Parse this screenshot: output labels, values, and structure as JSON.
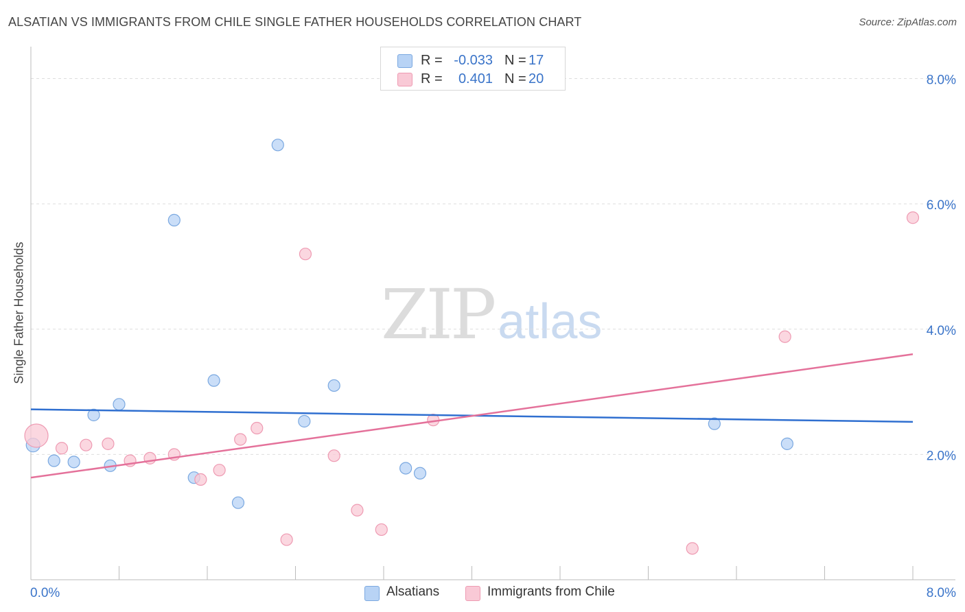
{
  "title": "ALSATIAN VS IMMIGRANTS FROM CHILE SINGLE FATHER HOUSEHOLDS CORRELATION CHART",
  "source": "Source: ZipAtlas.com",
  "watermark": {
    "zip": "ZIP",
    "atlas": "atlas"
  },
  "colors": {
    "blue_fill": "#b8d3f5",
    "blue_stroke": "#7aa8e0",
    "blue_line": "#2f6fd0",
    "pink_fill": "#f9c9d6",
    "pink_stroke": "#ee9ab2",
    "pink_line": "#e4719a",
    "tick_label": "#3a74c9"
  },
  "legend": {
    "rows": [
      {
        "r_label": "R =",
        "r_value": "-0.033",
        "n_label": "N =",
        "n_value": "17"
      },
      {
        "r_label": "R =",
        "r_value": "0.401",
        "n_label": "N =",
        "n_value": "20"
      }
    ]
  },
  "bottom_legend": {
    "series1": "Alsatians",
    "series2": "Immigrants from Chile"
  },
  "chart_data": {
    "type": "scatter",
    "title": "ALSATIAN VS IMMIGRANTS FROM CHILE SINGLE FATHER HOUSEHOLDS CORRELATION CHART",
    "xlabel": "",
    "ylabel": "Single Father Households",
    "xlim": [
      0,
      8
    ],
    "ylim": [
      0,
      8.4
    ],
    "x_tick_labels": [
      "0.0%",
      "8.0%"
    ],
    "y_ticks": [
      2,
      4,
      6,
      8
    ],
    "y_tick_labels": [
      "2.0%",
      "4.0%",
      "6.0%",
      "8.0%"
    ],
    "grid": "horizontal dashed",
    "legend_position": "top-center",
    "series": [
      {
        "name": "Alsatians",
        "points": [
          [
            0.02,
            2.15
          ],
          [
            0.21,
            1.9
          ],
          [
            0.39,
            1.88
          ],
          [
            0.57,
            2.63
          ],
          [
            0.72,
            1.82
          ],
          [
            0.8,
            2.8
          ],
          [
            1.3,
            5.74
          ],
          [
            1.48,
            1.63
          ],
          [
            1.66,
            3.18
          ],
          [
            1.88,
            1.23
          ],
          [
            2.24,
            6.94
          ],
          [
            2.48,
            2.53
          ],
          [
            2.75,
            3.1
          ],
          [
            3.4,
            1.78
          ],
          [
            3.53,
            1.7
          ],
          [
            6.2,
            2.49
          ],
          [
            6.86,
            2.17
          ]
        ],
        "trend": {
          "start": [
            0,
            2.72
          ],
          "end": [
            8,
            2.52
          ]
        }
      },
      {
        "name": "Immigrants from Chile",
        "points": [
          [
            0.05,
            2.3
          ],
          [
            0.28,
            2.1
          ],
          [
            0.5,
            2.15
          ],
          [
            0.7,
            2.17
          ],
          [
            0.9,
            1.9
          ],
          [
            1.08,
            1.94
          ],
          [
            1.3,
            2.0
          ],
          [
            1.54,
            1.6
          ],
          [
            1.71,
            1.75
          ],
          [
            1.9,
            2.24
          ],
          [
            2.05,
            2.42
          ],
          [
            2.32,
            0.64
          ],
          [
            2.49,
            5.2
          ],
          [
            2.75,
            1.98
          ],
          [
            2.96,
            1.11
          ],
          [
            3.18,
            0.8
          ],
          [
            3.65,
            2.55
          ],
          [
            6.0,
            0.5
          ],
          [
            6.84,
            3.88
          ],
          [
            8.0,
            5.78
          ]
        ],
        "trend": {
          "start": [
            0,
            1.63
          ],
          "end": [
            8,
            3.6
          ]
        }
      }
    ]
  }
}
